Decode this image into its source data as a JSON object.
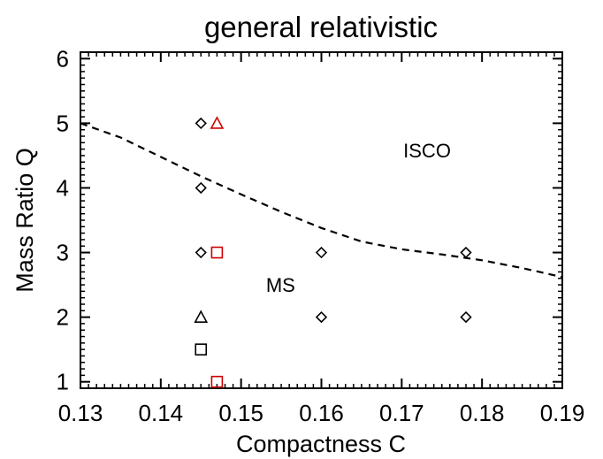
{
  "chart_data": {
    "type": "scatter",
    "title": "general relativistic",
    "xlabel": "Compactness C",
    "ylabel": "Mass Ratio Q",
    "xlim": [
      0.13,
      0.19
    ],
    "ylim": [
      0.9,
      6.1
    ],
    "xticks": [
      "0.13",
      "0.14",
      "0.15",
      "0.16",
      "0.17",
      "0.18",
      "0.19"
    ],
    "yticks": [
      "1",
      "2",
      "3",
      "4",
      "5",
      "6"
    ],
    "grid": false,
    "annotations": [
      {
        "text": "ISCO",
        "x": 0.1702,
        "y": 4.58
      },
      {
        "text": "MS",
        "x": 0.1531,
        "y": 2.5
      }
    ],
    "series": [
      {
        "marker": "diamond",
        "color": "#000000",
        "points": [
          {
            "x": 0.145,
            "y": 5.0
          },
          {
            "x": 0.145,
            "y": 4.0
          },
          {
            "x": 0.145,
            "y": 3.0
          },
          {
            "x": 0.16,
            "y": 3.0
          },
          {
            "x": 0.16,
            "y": 2.0
          },
          {
            "x": 0.178,
            "y": 3.0
          },
          {
            "x": 0.178,
            "y": 2.0
          }
        ]
      },
      {
        "marker": "triangle",
        "color": "#000000",
        "points": [
          {
            "x": 0.145,
            "y": 2.0
          }
        ]
      },
      {
        "marker": "square",
        "color": "#000000",
        "points": [
          {
            "x": 0.145,
            "y": 1.5
          }
        ]
      },
      {
        "marker": "triangle",
        "color": "#cc0000",
        "points": [
          {
            "x": 0.147,
            "y": 5.0
          }
        ]
      },
      {
        "marker": "square",
        "color": "#cc0000",
        "points": [
          {
            "x": 0.147,
            "y": 3.0
          },
          {
            "x": 0.147,
            "y": 1.0
          }
        ]
      },
      {
        "line": "dashed",
        "color": "#000000",
        "points": [
          {
            "x": 0.13,
            "y": 5.0
          },
          {
            "x": 0.135,
            "y": 4.78
          },
          {
            "x": 0.14,
            "y": 4.48
          },
          {
            "x": 0.145,
            "y": 4.18
          },
          {
            "x": 0.15,
            "y": 3.9
          },
          {
            "x": 0.155,
            "y": 3.63
          },
          {
            "x": 0.16,
            "y": 3.38
          },
          {
            "x": 0.165,
            "y": 3.17
          },
          {
            "x": 0.17,
            "y": 3.05
          },
          {
            "x": 0.175,
            "y": 2.97
          },
          {
            "x": 0.18,
            "y": 2.88
          },
          {
            "x": 0.185,
            "y": 2.76
          },
          {
            "x": 0.19,
            "y": 2.62
          }
        ]
      }
    ]
  }
}
